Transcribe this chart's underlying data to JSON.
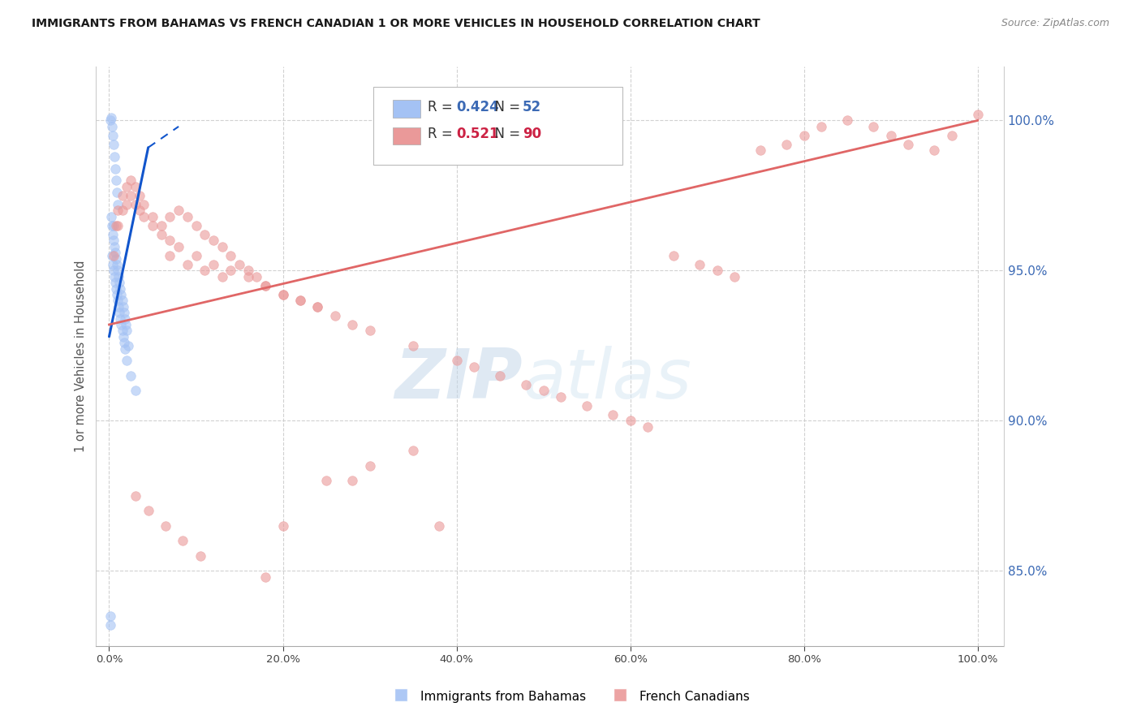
{
  "title": "IMMIGRANTS FROM BAHAMAS VS FRENCH CANADIAN 1 OR MORE VEHICLES IN HOUSEHOLD CORRELATION CHART",
  "source": "Source: ZipAtlas.com",
  "ylabel": "1 or more Vehicles in Household",
  "right_ytick_vals": [
    85.0,
    90.0,
    95.0,
    100.0
  ],
  "xtick_vals": [
    0.0,
    20.0,
    40.0,
    60.0,
    80.0,
    100.0
  ],
  "xmin": -1.5,
  "xmax": 103.0,
  "ymin": 82.5,
  "ymax": 101.8,
  "blue_R": 0.424,
  "blue_N": 52,
  "pink_R": 0.521,
  "pink_N": 90,
  "blue_dot_color": "#a4c2f4",
  "pink_dot_color": "#ea9999",
  "blue_line_color": "#1155cc",
  "pink_line_color": "#e06666",
  "blue_line_dash": [
    6,
    4
  ],
  "dot_size": 70,
  "dot_alpha": 0.6,
  "blue_x": [
    0.1,
    0.2,
    0.3,
    0.4,
    0.5,
    0.6,
    0.7,
    0.8,
    0.9,
    1.0,
    0.2,
    0.3,
    0.4,
    0.5,
    0.6,
    0.7,
    0.8,
    0.9,
    1.0,
    1.1,
    1.2,
    1.3,
    1.4,
    1.5,
    1.6,
    1.7,
    1.8,
    1.9,
    2.0,
    2.2,
    0.3,
    0.4,
    0.5,
    0.6,
    0.7,
    0.8,
    0.9,
    1.0,
    1.1,
    1.2,
    1.3,
    1.4,
    1.5,
    1.6,
    1.7,
    1.8,
    2.0,
    2.5,
    3.0,
    0.5,
    0.1,
    0.15
  ],
  "blue_y": [
    100.0,
    100.1,
    99.8,
    99.5,
    99.2,
    98.8,
    98.4,
    98.0,
    97.6,
    97.2,
    96.8,
    96.5,
    96.2,
    96.0,
    95.8,
    95.6,
    95.4,
    95.2,
    95.0,
    94.8,
    94.6,
    94.4,
    94.2,
    94.0,
    93.8,
    93.6,
    93.4,
    93.2,
    93.0,
    92.5,
    95.5,
    95.2,
    95.0,
    94.8,
    94.6,
    94.4,
    94.2,
    94.0,
    93.8,
    93.6,
    93.4,
    93.2,
    93.0,
    92.8,
    92.6,
    92.4,
    92.0,
    91.5,
    91.0,
    96.5,
    83.5,
    83.2
  ],
  "pink_x": [
    0.5,
    0.8,
    1.0,
    1.5,
    2.0,
    2.5,
    3.0,
    3.5,
    4.0,
    5.0,
    6.0,
    7.0,
    8.0,
    9.0,
    10.0,
    11.0,
    12.0,
    13.0,
    14.0,
    15.0,
    16.0,
    17.0,
    18.0,
    20.0,
    22.0,
    24.0,
    26.0,
    28.0,
    30.0,
    35.0,
    40.0,
    42.0,
    45.0,
    48.0,
    50.0,
    52.0,
    55.0,
    58.0,
    60.0,
    62.0,
    65.0,
    68.0,
    70.0,
    72.0,
    75.0,
    78.0,
    80.0,
    82.0,
    85.0,
    88.0,
    90.0,
    92.0,
    95.0,
    97.0,
    100.0,
    1.0,
    1.5,
    2.0,
    2.5,
    3.0,
    3.5,
    4.0,
    5.0,
    6.0,
    7.0,
    8.0,
    10.0,
    12.0,
    14.0,
    16.0,
    18.0,
    20.0,
    22.0,
    24.0,
    7.0,
    9.0,
    11.0,
    13.0,
    3.0,
    4.5,
    6.5,
    8.5,
    10.5,
    30.0,
    25.0,
    20.0,
    35.0,
    28.0,
    18.0,
    38.0
  ],
  "pink_y": [
    95.5,
    96.5,
    97.0,
    97.5,
    97.8,
    98.0,
    97.8,
    97.5,
    97.2,
    96.8,
    96.5,
    96.8,
    97.0,
    96.8,
    96.5,
    96.2,
    96.0,
    95.8,
    95.5,
    95.2,
    95.0,
    94.8,
    94.5,
    94.2,
    94.0,
    93.8,
    93.5,
    93.2,
    93.0,
    92.5,
    92.0,
    91.8,
    91.5,
    91.2,
    91.0,
    90.8,
    90.5,
    90.2,
    90.0,
    89.8,
    95.5,
    95.2,
    95.0,
    94.8,
    99.0,
    99.2,
    99.5,
    99.8,
    100.0,
    99.8,
    99.5,
    99.2,
    99.0,
    99.5,
    100.2,
    96.5,
    97.0,
    97.2,
    97.5,
    97.2,
    97.0,
    96.8,
    96.5,
    96.2,
    96.0,
    95.8,
    95.5,
    95.2,
    95.0,
    94.8,
    94.5,
    94.2,
    94.0,
    93.8,
    95.5,
    95.2,
    95.0,
    94.8,
    87.5,
    87.0,
    86.5,
    86.0,
    85.5,
    88.5,
    88.0,
    86.5,
    89.0,
    88.0,
    84.8,
    86.5
  ]
}
